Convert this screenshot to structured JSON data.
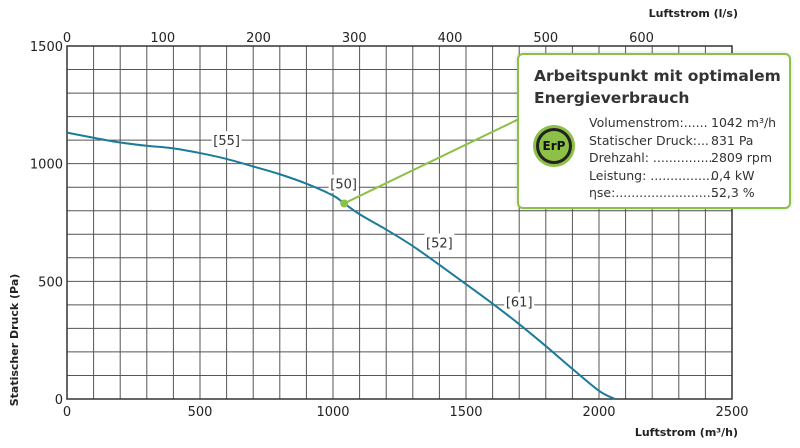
{
  "chart_data": {
    "type": "line",
    "xlabel": "Luftstrom (m³/h)",
    "x2label": "Luftstrom (l/s)",
    "ylabel": "Statischer Druck (Pa)",
    "xlim": [
      0,
      2500
    ],
    "ylim": [
      0,
      1500
    ],
    "x2lim": [
      0,
      694.44
    ],
    "x_ticks": [
      0,
      500,
      1000,
      1500,
      2000,
      2500
    ],
    "x2_ticks": [
      0,
      100,
      200,
      300,
      400,
      500,
      600
    ],
    "y_ticks": [
      0,
      500,
      1000,
      1500
    ],
    "grid": true,
    "series": [
      {
        "color": "#1b7b9b",
        "x": [
          0,
          100,
          200,
          300,
          400,
          500,
          600,
          700,
          800,
          900,
          1000,
          1042,
          1100,
          1200,
          1300,
          1400,
          1500,
          1600,
          1700,
          1800,
          1900,
          2000,
          2060
        ],
        "y": [
          1132,
          1110,
          1090,
          1076,
          1065,
          1045,
          1020,
          988,
          955,
          915,
          865,
          831,
          785,
          720,
          650,
          570,
          488,
          405,
          318,
          225,
          128,
          35,
          0
        ]
      }
    ],
    "curve_labels": [
      {
        "text": "[55]",
        "x": 600,
        "y": 1100
      },
      {
        "text": "[50]",
        "x": 1040,
        "y": 915
      },
      {
        "text": "[52]",
        "x": 1400,
        "y": 665
      },
      {
        "text": "[61]",
        "x": 1700,
        "y": 415
      }
    ],
    "operating_point": {
      "x": 1042,
      "y": 831,
      "color": "#8cc046"
    }
  },
  "info_box": {
    "title": "Arbeitspunkt mit optimalem Energieverbrauch",
    "badge": "ErP",
    "rows": [
      {
        "label": "Volumenstrom:......",
        "value": "1042 m³/h"
      },
      {
        "label": "Statischer Druck:...",
        "value": "831 Pa"
      },
      {
        "label": "Drehzahl: ...............",
        "value": "2809 rpm"
      },
      {
        "label": "Leistung: .................",
        "value": "0,4 kW"
      },
      {
        "label": "ηse:............................",
        "value": "52,3 %"
      }
    ]
  }
}
